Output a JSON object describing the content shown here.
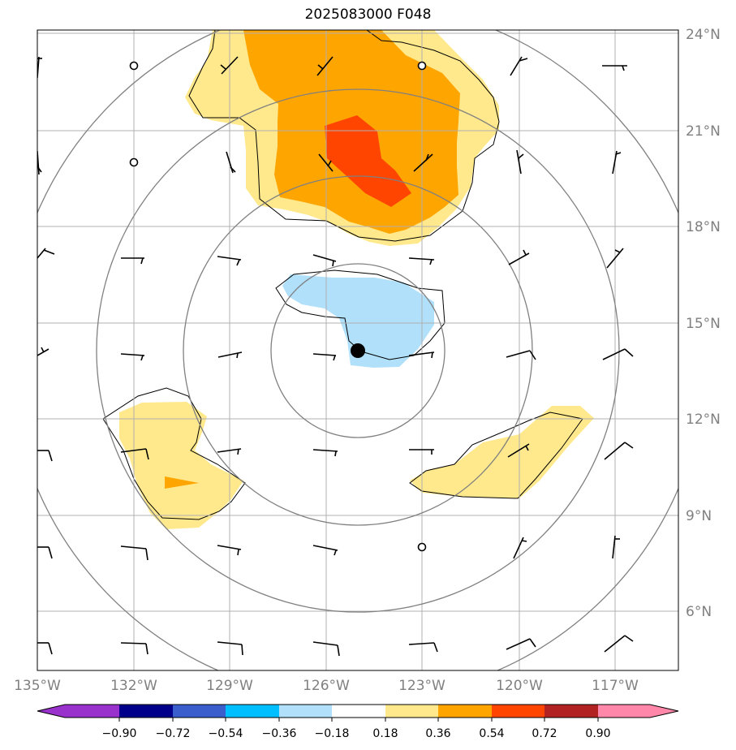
{
  "title": "2025083000 F048",
  "lat_labels": [
    "24°N",
    "21°N",
    "18°N",
    "15°N",
    "12°N",
    "9°N",
    "6°N"
  ],
  "lon_labels": [
    "135°W",
    "132°W",
    "129°W",
    "126°W",
    "123°W",
    "120°W",
    "117°W"
  ],
  "colorbar": {
    "tick_labels": [
      "−0.90",
      "−0.72",
      "−0.54",
      "−0.36",
      "−0.18",
      "0.18",
      "0.36",
      "0.54",
      "0.72",
      "0.90"
    ],
    "colors": [
      "#9932cc",
      "#00008b",
      "#3a5fcd",
      "#00bfff",
      "#b0e0fa",
      "#ffffff",
      "#ffe98c",
      "#ffa500",
      "#ff4500",
      "#b22222",
      "#ff88aa"
    ]
  },
  "legend_colors": {
    "shade_low": "#ffe98c",
    "shade_mid": "#ffa500",
    "shade_high": "#ff4500",
    "shade_negative": "#b0e0fa",
    "range_rings": "#808080",
    "gridlines": "#b0b0b0"
  },
  "storm_center_icon": "filled-black-circle"
}
